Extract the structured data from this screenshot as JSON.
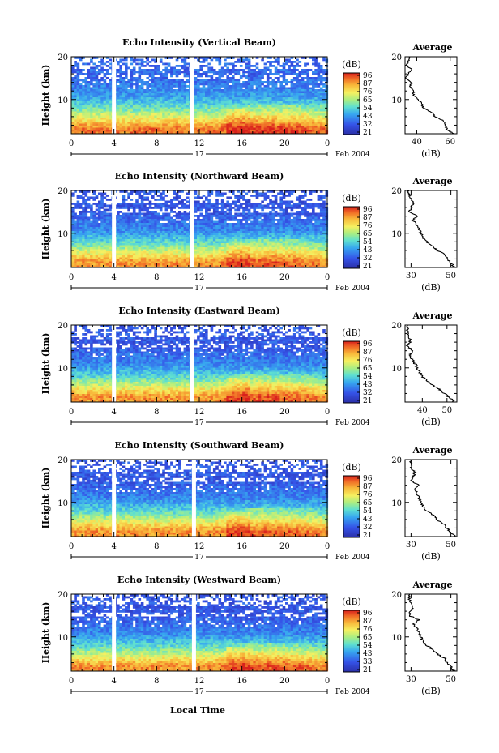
{
  "chart_data": [
    {
      "type": "heatmap",
      "title": "Echo Intensity (Vertical Beam)",
      "ylabel": "Height (km)",
      "x_ticks": [
        "0",
        "4",
        "8",
        "12",
        "16",
        "20",
        "0"
      ],
      "y_ticks": [
        "10",
        "20"
      ],
      "xlim": [
        0,
        24
      ],
      "ylim": [
        2,
        20
      ],
      "gaps_hours": [
        4.0,
        11.3
      ],
      "date_label": "17",
      "date_suffix": "Feb 2004",
      "colorbar": {
        "unit": "(dB)",
        "ticks": [
          "96",
          "87",
          "76",
          "65",
          "54",
          "43",
          "32",
          "21"
        ],
        "range": [
          21,
          96
        ]
      },
      "average": {
        "title": "Average",
        "xlabel": "(dB)",
        "x_ticks": [
          "40",
          "60"
        ],
        "xlim": [
          33,
          64
        ],
        "y_ticks": [
          "10",
          "20"
        ],
        "profile": {
          "height_km": [
            2,
            3,
            4,
            5,
            6,
            7,
            8,
            9,
            10,
            11,
            12,
            13,
            14,
            15,
            16,
            17,
            18,
            19,
            20
          ],
          "db": [
            62,
            58,
            57,
            56,
            51,
            49,
            44,
            43,
            41,
            38,
            38,
            36,
            37,
            33,
            35,
            37,
            34,
            35,
            36
          ]
        }
      }
    },
    {
      "type": "heatmap",
      "title": "Echo Intensity (Northward Beam)",
      "ylabel": "Height (km)",
      "x_ticks": [
        "0",
        "4",
        "8",
        "12",
        "16",
        "20",
        "0"
      ],
      "y_ticks": [
        "10",
        "20"
      ],
      "xlim": [
        0,
        24
      ],
      "ylim": [
        2,
        20
      ],
      "gaps_hours": [
        4.0,
        11.3
      ],
      "date_label": "17",
      "date_suffix": "Feb 2004",
      "colorbar": {
        "unit": "(dB)",
        "ticks": [
          "96",
          "87",
          "76",
          "65",
          "54",
          "43",
          "32",
          "21"
        ],
        "range": [
          21,
          96
        ]
      },
      "average": {
        "title": "Average",
        "xlabel": "(dB)",
        "x_ticks": [
          "30",
          "50"
        ],
        "xlim": [
          27,
          53
        ],
        "y_ticks": [
          "10",
          "20"
        ],
        "profile": {
          "height_km": [
            2,
            3,
            4,
            5,
            6,
            7,
            8,
            9,
            10,
            11,
            12,
            13,
            14,
            15,
            16,
            17,
            18,
            19,
            20
          ],
          "db": [
            52,
            50,
            48,
            47,
            43,
            41,
            38,
            36,
            35,
            34,
            33,
            31,
            33,
            29,
            30,
            31,
            30,
            29,
            28
          ]
        }
      }
    },
    {
      "type": "heatmap",
      "title": "Echo Intensity (Eastward Beam)",
      "ylabel": "Height (km)",
      "x_ticks": [
        "0",
        "4",
        "8",
        "12",
        "16",
        "20",
        "0"
      ],
      "y_ticks": [
        "10",
        "20"
      ],
      "xlim": [
        0,
        24
      ],
      "ylim": [
        2,
        20
      ],
      "gaps_hours": [
        4.0,
        11.3
      ],
      "date_label": "17",
      "date_suffix": "Feb 2004",
      "colorbar": {
        "unit": "(dB)",
        "ticks": [
          "96",
          "87",
          "76",
          "65",
          "54",
          "43",
          "32",
          "21"
        ],
        "range": [
          21,
          96
        ]
      },
      "average": {
        "title": "Average",
        "xlabel": "(dB)",
        "x_ticks": [
          "40",
          "50"
        ],
        "xlim": [
          33,
          54
        ],
        "y_ticks": [
          "10",
          "20"
        ],
        "profile": {
          "height_km": [
            2,
            3,
            4,
            5,
            6,
            7,
            8,
            9,
            10,
            11,
            12,
            13,
            14,
            15,
            16,
            17,
            18,
            19,
            20
          ],
          "db": [
            53,
            51,
            49,
            47,
            44,
            42,
            40,
            39,
            38,
            37,
            36,
            35,
            36,
            34,
            35,
            35,
            34,
            34,
            34
          ]
        }
      }
    },
    {
      "type": "heatmap",
      "title": "Echo Intensity (Southward Beam)",
      "ylabel": "Height (km)",
      "x_ticks": [
        "0",
        "4",
        "8",
        "12",
        "16",
        "20",
        "0"
      ],
      "y_ticks": [
        "10",
        "20"
      ],
      "xlim": [
        0,
        24
      ],
      "ylim": [
        2,
        20
      ],
      "gaps_hours": [
        4.0,
        11.5
      ],
      "date_label": "17",
      "date_suffix": "Feb 2004",
      "colorbar": {
        "unit": "(dB)",
        "ticks": [
          "96",
          "87",
          "76",
          "65",
          "54",
          "43",
          "32",
          "21"
        ],
        "range": [
          21,
          96
        ]
      },
      "average": {
        "title": "Average",
        "xlabel": "(dB)",
        "x_ticks": [
          "30",
          "50"
        ],
        "xlim": [
          27,
          53
        ],
        "y_ticks": [
          "10",
          "20"
        ],
        "profile": {
          "height_km": [
            2,
            3,
            4,
            5,
            6,
            7,
            8,
            9,
            10,
            11,
            12,
            13,
            14,
            15,
            16,
            17,
            18,
            19,
            20
          ],
          "db": [
            52,
            50,
            48,
            46,
            43,
            41,
            38,
            36,
            35,
            34,
            33,
            32,
            34,
            30,
            31,
            32,
            30,
            30,
            30
          ]
        }
      }
    },
    {
      "type": "heatmap",
      "title": "Echo Intensity (Westward Beam)",
      "ylabel": "Height (km)",
      "x_ticks": [
        "0",
        "4",
        "8",
        "12",
        "16",
        "20",
        "0"
      ],
      "y_ticks": [
        "10",
        "20"
      ],
      "xlim": [
        0,
        24
      ],
      "ylim": [
        2,
        20
      ],
      "gaps_hours": [
        4.0,
        11.5
      ],
      "date_label": "17",
      "date_suffix": "Feb 2004",
      "colorbar": {
        "unit": "(dB)",
        "ticks": [
          "96",
          "87",
          "76",
          "65",
          "54",
          "43",
          "33",
          "21"
        ],
        "range": [
          21,
          96
        ]
      },
      "average": {
        "title": "Average",
        "xlabel": "(dB)",
        "x_ticks": [
          "30",
          "50"
        ],
        "xlim": [
          27,
          53
        ],
        "y_ticks": [
          "10",
          "20"
        ],
        "profile": {
          "height_km": [
            2,
            3,
            4,
            5,
            6,
            7,
            8,
            9,
            10,
            11,
            12,
            13,
            14,
            15,
            16,
            17,
            18,
            19,
            20
          ],
          "db": [
            52,
            50,
            48,
            47,
            43,
            41,
            38,
            36,
            35,
            34,
            33,
            31,
            34,
            29,
            30,
            31,
            30,
            29,
            29
          ]
        }
      }
    }
  ],
  "xaxis_label": "Local Time"
}
